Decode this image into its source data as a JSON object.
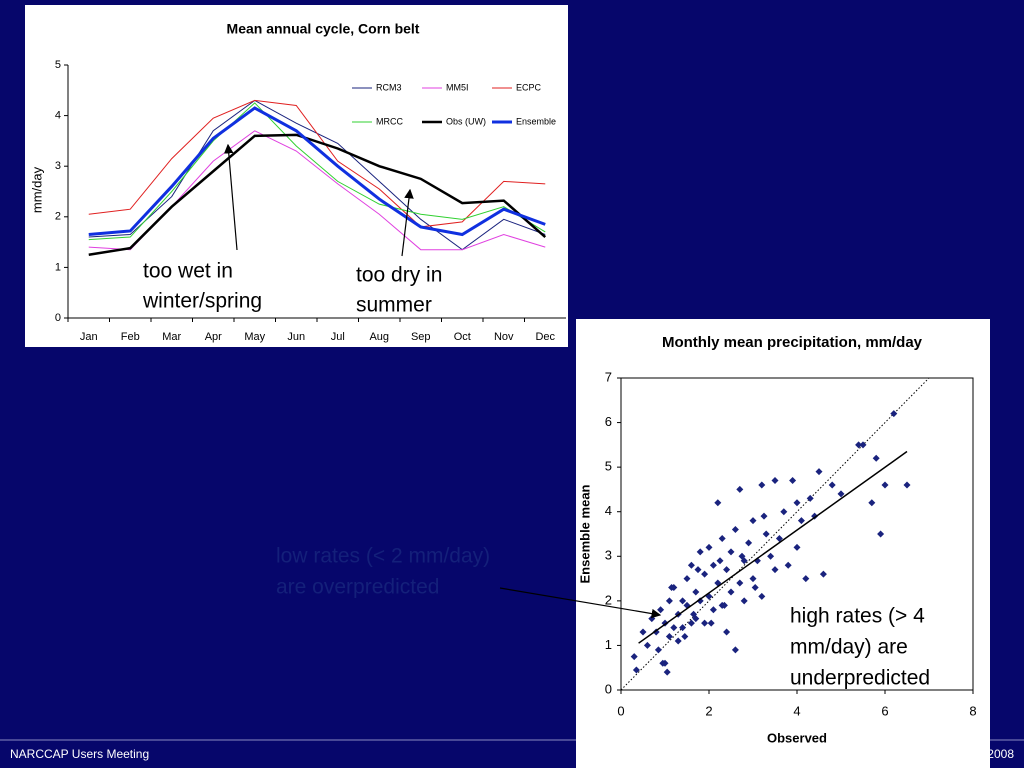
{
  "chart_data": [
    {
      "type": "line",
      "title": "Mean annual cycle, Corn belt",
      "ylabel": "mm/day",
      "categories": [
        "Jan",
        "Feb",
        "Mar",
        "Apr",
        "May",
        "Jun",
        "Jul",
        "Aug",
        "Sep",
        "Oct",
        "Nov",
        "Dec"
      ],
      "ylim": [
        0,
        5
      ],
      "yticks": [
        0,
        1,
        2,
        3,
        4,
        5
      ],
      "series": [
        {
          "name": "RCM3",
          "color": "#1a237e",
          "width": 1,
          "values": [
            1.6,
            1.65,
            2.4,
            3.7,
            4.3,
            3.85,
            3.45,
            2.7,
            1.95,
            1.35,
            1.95,
            1.65
          ]
        },
        {
          "name": "MM5I",
          "color": "#e040e0",
          "width": 1,
          "values": [
            1.4,
            1.35,
            2.2,
            3.1,
            3.7,
            3.3,
            2.65,
            2.05,
            1.35,
            1.35,
            1.65,
            1.4
          ]
        },
        {
          "name": "ECPC",
          "color": "#e02020",
          "width": 1,
          "values": [
            2.05,
            2.15,
            3.15,
            3.95,
            4.3,
            4.2,
            3.1,
            2.55,
            1.8,
            1.9,
            2.7,
            2.65
          ]
        },
        {
          "name": "MRCC",
          "color": "#30d030",
          "width": 1,
          "values": [
            1.55,
            1.6,
            2.5,
            3.5,
            4.25,
            3.4,
            2.7,
            2.25,
            2.05,
            1.95,
            2.2,
            1.7
          ]
        },
        {
          "name": "Obs (UW)",
          "color": "#000000",
          "width": 2.5,
          "values": [
            1.25,
            1.38,
            2.2,
            2.9,
            3.6,
            3.62,
            3.35,
            3.0,
            2.75,
            2.27,
            2.32,
            1.6
          ]
        },
        {
          "name": "Ensemble",
          "color": "#1030e0",
          "width": 3,
          "values": [
            1.65,
            1.72,
            2.6,
            3.55,
            4.15,
            3.7,
            3.0,
            2.35,
            1.8,
            1.65,
            2.15,
            1.85
          ]
        }
      ],
      "annotations": [
        {
          "lines": [
            "too wet in",
            "winter/spring"
          ]
        },
        {
          "lines": [
            "too dry in",
            "summer"
          ]
        }
      ]
    },
    {
      "type": "scatter",
      "title": "Monthly mean precipitation, mm/day",
      "xlabel": "Observed",
      "ylabel": "Ensemble mean",
      "xlim": [
        0,
        8
      ],
      "xticks": [
        0,
        2,
        4,
        6,
        8
      ],
      "ylim": [
        0,
        7
      ],
      "yticks": [
        0,
        1,
        2,
        3,
        4,
        5,
        6,
        7
      ],
      "color": "#1a237e",
      "x": [
        0.3,
        0.35,
        0.5,
        0.6,
        0.7,
        0.8,
        0.85,
        0.9,
        1.0,
        1.0,
        1.05,
        1.1,
        1.1,
        1.2,
        1.2,
        1.3,
        1.3,
        1.4,
        1.4,
        1.5,
        1.5,
        1.6,
        1.6,
        1.7,
        1.7,
        1.8,
        1.8,
        1.9,
        1.9,
        2.0,
        2.0,
        2.1,
        2.1,
        2.2,
        2.2,
        2.3,
        2.3,
        2.4,
        2.4,
        2.5,
        2.5,
        2.6,
        2.6,
        2.7,
        2.7,
        2.8,
        2.8,
        2.9,
        3.0,
        3.0,
        3.1,
        3.2,
        3.2,
        3.3,
        3.4,
        3.5,
        3.5,
        3.6,
        3.7,
        3.8,
        3.9,
        4.0,
        4.0,
        4.1,
        4.2,
        4.3,
        4.4,
        4.5,
        4.6,
        4.8,
        5.0,
        5.4,
        5.5,
        5.7,
        5.8,
        5.9,
        6.0,
        6.2,
        6.5,
        0.95,
        1.15,
        1.65,
        2.35,
        2.75,
        3.25,
        1.45,
        2.05,
        3.05,
        1.75,
        2.25
      ],
      "y": [
        0.75,
        0.45,
        1.3,
        1.0,
        1.6,
        1.3,
        0.9,
        1.8,
        0.6,
        1.5,
        0.4,
        1.2,
        2.0,
        1.4,
        2.3,
        1.7,
        1.1,
        2.0,
        1.4,
        1.9,
        2.5,
        1.5,
        2.8,
        2.2,
        1.6,
        3.1,
        2.0,
        1.5,
        2.6,
        2.1,
        3.2,
        1.8,
        2.8,
        2.4,
        4.2,
        1.9,
        3.4,
        2.7,
        1.3,
        3.1,
        2.2,
        0.9,
        3.6,
        2.4,
        4.5,
        2.9,
        2.0,
        3.3,
        2.5,
        3.8,
        2.9,
        4.6,
        2.1,
        3.5,
        3.0,
        4.7,
        2.7,
        3.4,
        4.0,
        2.8,
        4.7,
        3.2,
        4.2,
        3.8,
        2.5,
        4.3,
        3.9,
        4.9,
        2.6,
        4.6,
        4.4,
        5.5,
        5.5,
        4.2,
        5.2,
        3.5,
        4.6,
        6.2,
        4.6,
        0.6,
        2.3,
        1.7,
        1.9,
        3.0,
        3.9,
        1.2,
        1.5,
        2.3,
        2.7,
        2.9
      ],
      "fit": {
        "x": [
          0.4,
          6.5
        ],
        "y": [
          1.05,
          5.35
        ]
      },
      "annotations": [
        {
          "lines": [
            "low rates (< 2 mm/day)",
            "are overpredicted"
          ],
          "color": "#14207a"
        },
        {
          "lines": [
            "high rates (> 4",
            "mm/day) are",
            "underpredicted"
          ],
          "color": "#000000"
        }
      ]
    }
  ],
  "footer": {
    "left": "NARCCAP Users Meeting",
    "right": "2008"
  }
}
